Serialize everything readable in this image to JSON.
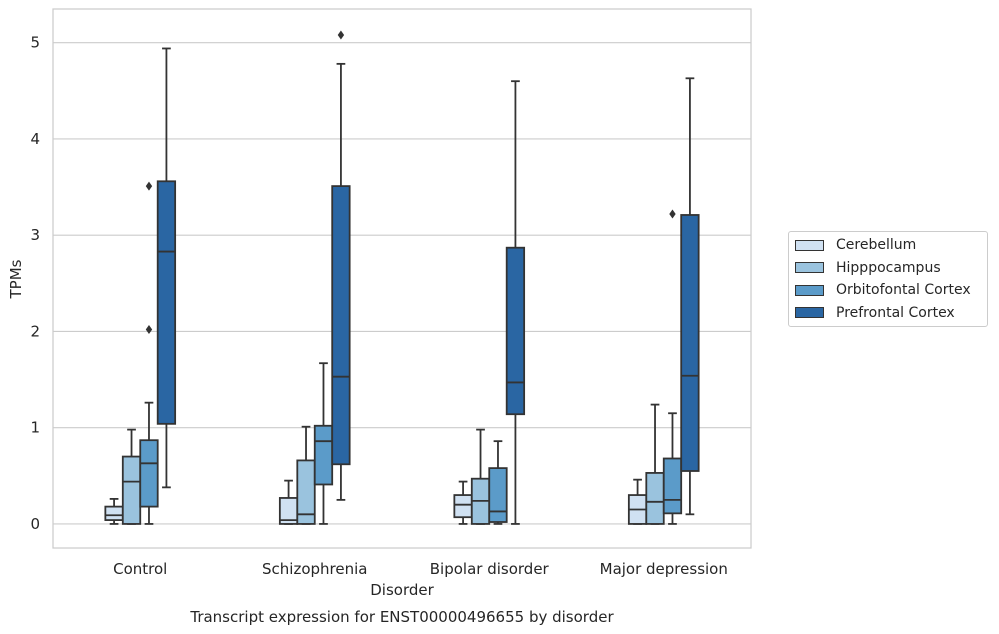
{
  "chart_data": {
    "type": "box",
    "xlabel": "Disorder",
    "ylabel": "TPMs",
    "caption": "Transcript expression for ENST00000496655 by disorder",
    "ylim": [
      -0.25,
      5.35
    ],
    "yticks": [
      0,
      1,
      2,
      3,
      4,
      5
    ],
    "grid": true,
    "legend_position": "right",
    "categories": [
      "Control",
      "Schizophrenia",
      "Bipolar disorder",
      "Major depression"
    ],
    "series": [
      {
        "name": "Cerebellum",
        "color": "#d0e1f2",
        "boxes": [
          {
            "whisker_low": 0.0,
            "q1": 0.04,
            "median": 0.09,
            "q3": 0.18,
            "whisker_high": 0.26,
            "outliers": []
          },
          {
            "whisker_low": 0.0,
            "q1": 0.0,
            "median": 0.04,
            "q3": 0.27,
            "whisker_high": 0.45,
            "outliers": []
          },
          {
            "whisker_low": 0.0,
            "q1": 0.07,
            "median": 0.2,
            "q3": 0.3,
            "whisker_high": 0.44,
            "outliers": []
          },
          {
            "whisker_low": 0.0,
            "q1": 0.0,
            "median": 0.15,
            "q3": 0.3,
            "whisker_high": 0.46,
            "outliers": []
          }
        ]
      },
      {
        "name": "Hipppocampus",
        "color": "#9ac3de",
        "boxes": [
          {
            "whisker_low": 0.0,
            "q1": 0.0,
            "median": 0.44,
            "q3": 0.7,
            "whisker_high": 0.98,
            "outliers": []
          },
          {
            "whisker_low": 0.0,
            "q1": 0.0,
            "median": 0.1,
            "q3": 0.66,
            "whisker_high": 1.01,
            "outliers": []
          },
          {
            "whisker_low": 0.0,
            "q1": 0.0,
            "median": 0.24,
            "q3": 0.47,
            "whisker_high": 0.98,
            "outliers": []
          },
          {
            "whisker_low": 0.0,
            "q1": 0.0,
            "median": 0.23,
            "q3": 0.53,
            "whisker_high": 1.24,
            "outliers": []
          }
        ]
      },
      {
        "name": "Orbitofontal Cortex",
        "color": "#5b9bc9",
        "boxes": [
          {
            "whisker_low": 0.0,
            "q1": 0.18,
            "median": 0.63,
            "q3": 0.87,
            "whisker_high": 1.26,
            "outliers": [
              2.02,
              3.51
            ]
          },
          {
            "whisker_low": 0.0,
            "q1": 0.41,
            "median": 0.86,
            "q3": 1.02,
            "whisker_high": 1.67,
            "outliers": []
          },
          {
            "whisker_low": 0.0,
            "q1": 0.02,
            "median": 0.13,
            "q3": 0.58,
            "whisker_high": 0.86,
            "outliers": []
          },
          {
            "whisker_low": 0.0,
            "q1": 0.11,
            "median": 0.25,
            "q3": 0.68,
            "whisker_high": 1.15,
            "outliers": [
              3.22
            ]
          }
        ]
      },
      {
        "name": "Prefrontal Cortex",
        "color": "#2a66a3",
        "boxes": [
          {
            "whisker_low": 0.38,
            "q1": 1.04,
            "median": 2.83,
            "q3": 3.56,
            "whisker_high": 4.94,
            "outliers": []
          },
          {
            "whisker_low": 0.25,
            "q1": 0.62,
            "median": 1.53,
            "q3": 3.51,
            "whisker_high": 4.78,
            "outliers": [
              5.08
            ]
          },
          {
            "whisker_low": 0.0,
            "q1": 1.14,
            "median": 1.47,
            "q3": 2.87,
            "whisker_high": 4.6,
            "outliers": []
          },
          {
            "whisker_low": 0.1,
            "q1": 0.55,
            "median": 1.54,
            "q3": 3.21,
            "whisker_high": 4.63,
            "outliers": []
          }
        ]
      }
    ]
  }
}
